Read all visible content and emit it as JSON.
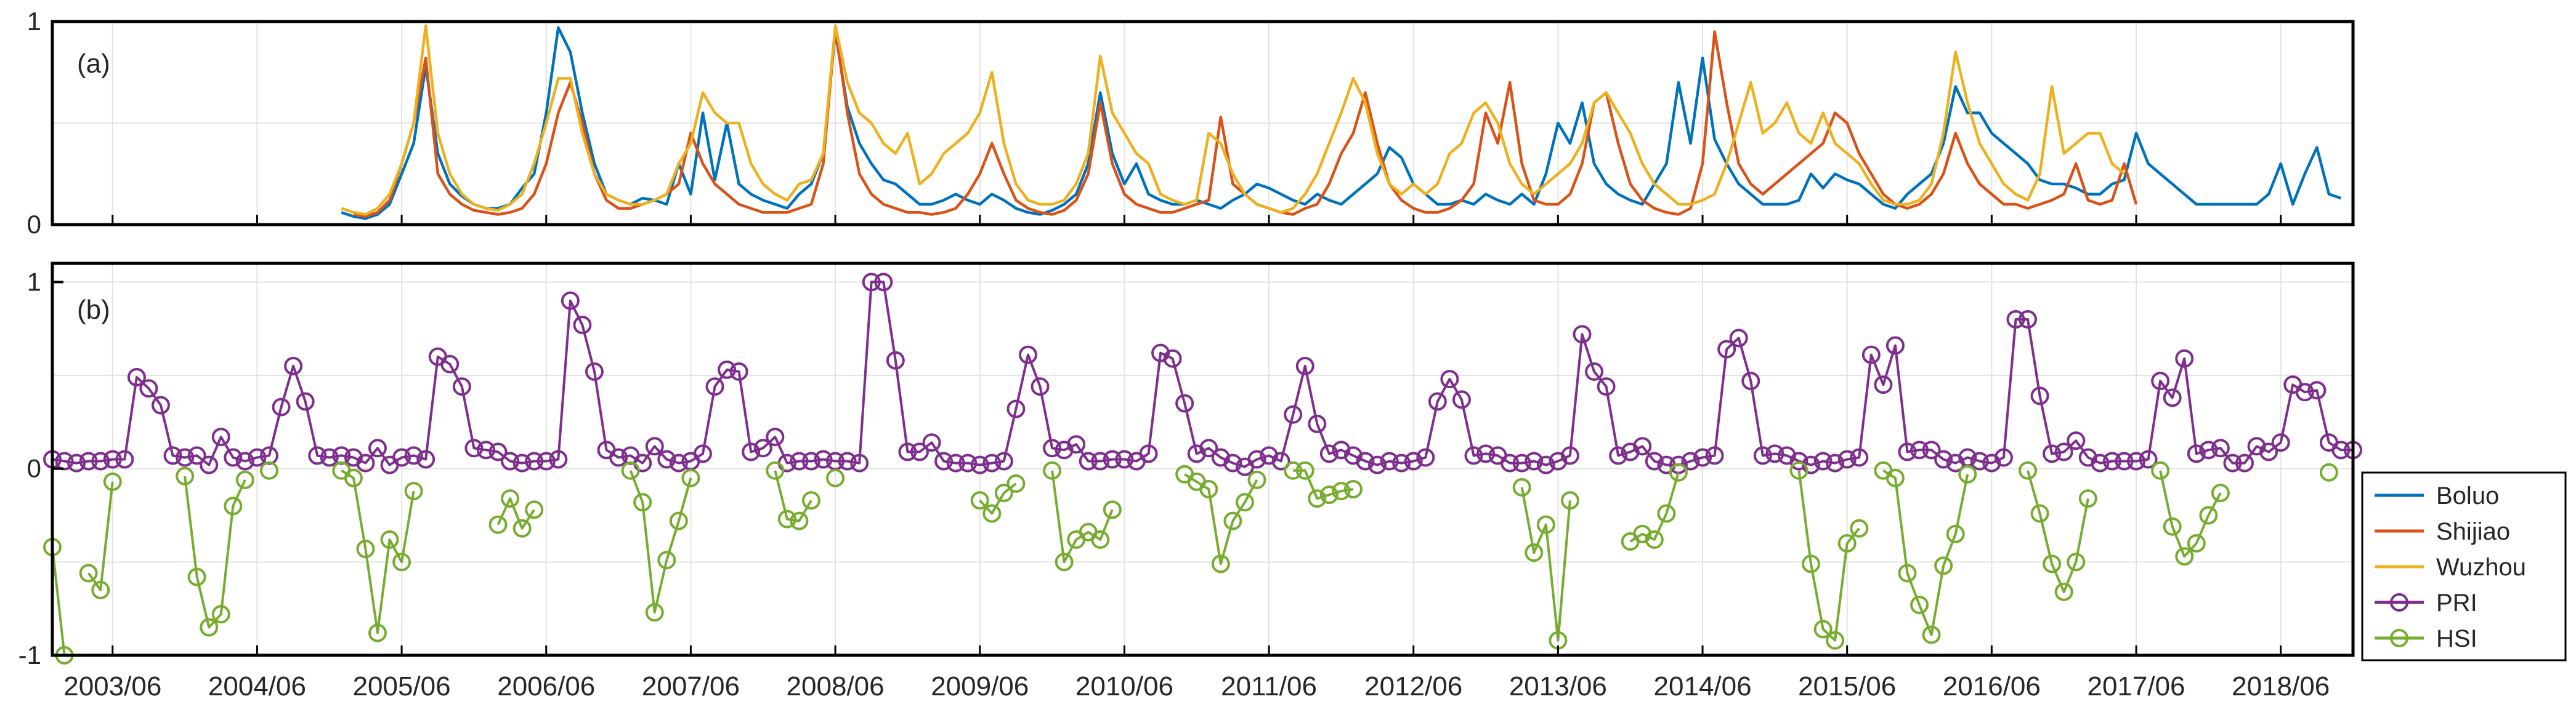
{
  "figure": {
    "legend": [
      {
        "label": "Boluo",
        "color": "#0072BD",
        "marker": "none"
      },
      {
        "label": "Shijiao",
        "color": "#D95319",
        "marker": "none"
      },
      {
        "label": "Wuzhou",
        "color": "#EDB120",
        "marker": "none"
      },
      {
        "label": "PRI",
        "color": "#7E2F8E",
        "marker": "circle"
      },
      {
        "label": "HSI",
        "color": "#77AC30",
        "marker": "circle"
      }
    ],
    "x_ticks": [
      "2003/06",
      "2004/06",
      "2005/06",
      "2006/06",
      "2007/06",
      "2008/06",
      "2009/06",
      "2010/06",
      "2011/06",
      "2012/06",
      "2013/06",
      "2014/06",
      "2015/06",
      "2016/06",
      "2017/06",
      "2018/06"
    ]
  },
  "chart_data": [
    {
      "type": "line",
      "panel_label": "(a)",
      "x_unit": "month index (0 = 2003/01)",
      "xlim": [
        0,
        191
      ],
      "ylim": [
        0,
        1
      ],
      "yticks": [
        0,
        1
      ],
      "grid": true,
      "series": [
        {
          "name": "Boluo",
          "color": "#0072BD",
          "x_start": 24,
          "values": [
            0.06,
            0.04,
            0.03,
            0.05,
            0.1,
            0.25,
            0.4,
            0.78,
            0.35,
            0.2,
            0.14,
            0.1,
            0.08,
            0.08,
            0.1,
            0.18,
            0.25,
            0.55,
            0.97,
            0.85,
            0.55,
            0.3,
            0.15,
            0.12,
            0.1,
            0.13,
            0.12,
            0.1,
            0.3,
            0.15,
            0.55,
            0.22,
            0.5,
            0.2,
            0.15,
            0.12,
            0.1,
            0.08,
            0.15,
            0.2,
            0.35,
            0.95,
            0.58,
            0.4,
            0.3,
            0.22,
            0.2,
            0.15,
            0.1,
            0.1,
            0.12,
            0.15,
            0.12,
            0.1,
            0.15,
            0.12,
            0.08,
            0.06,
            0.05,
            0.07,
            0.1,
            0.15,
            0.3,
            0.65,
            0.35,
            0.2,
            0.3,
            0.15,
            0.12,
            0.1,
            0.1,
            0.12,
            0.1,
            0.08,
            0.12,
            0.15,
            0.2,
            0.18,
            0.15,
            0.12,
            0.1,
            0.15,
            0.12,
            0.1,
            0.15,
            0.2,
            0.25,
            0.38,
            0.33,
            0.2,
            0.15,
            0.1,
            0.1,
            0.12,
            0.1,
            0.15,
            0.12,
            0.1,
            0.15,
            0.1,
            0.25,
            0.5,
            0.4,
            0.6,
            0.3,
            0.2,
            0.15,
            0.12,
            0.1,
            0.2,
            0.3,
            0.7,
            0.4,
            0.82,
            0.42,
            0.3,
            0.2,
            0.15,
            0.1,
            0.1,
            0.1,
            0.12,
            0.25,
            0.18,
            0.25,
            0.22,
            0.2,
            0.15,
            0.1,
            0.08,
            0.15,
            0.2,
            0.25,
            0.4,
            0.68,
            0.55,
            0.55,
            0.45,
            0.4,
            0.35,
            0.3,
            0.22,
            0.2,
            0.2,
            0.18,
            0.15,
            0.15,
            0.2,
            0.22,
            0.45,
            0.3,
            0.25,
            0.2,
            0.15,
            0.1,
            0.1,
            0.1,
            0.1,
            0.1,
            0.1,
            0.15,
            0.3,
            0.1,
            0.25,
            0.38,
            0.15,
            0.13
          ]
        },
        {
          "name": "Shijiao",
          "color": "#D95319",
          "x_start": 25,
          "values": [
            0.05,
            0.04,
            0.06,
            0.12,
            0.3,
            0.5,
            0.82,
            0.25,
            0.15,
            0.1,
            0.07,
            0.06,
            0.05,
            0.06,
            0.08,
            0.15,
            0.3,
            0.55,
            0.7,
            0.5,
            0.25,
            0.12,
            0.08,
            0.08,
            0.1,
            0.12,
            0.15,
            0.2,
            0.45,
            0.3,
            0.2,
            0.15,
            0.1,
            0.08,
            0.06,
            0.06,
            0.06,
            0.08,
            0.1,
            0.3,
            0.97,
            0.55,
            0.25,
            0.15,
            0.1,
            0.08,
            0.06,
            0.06,
            0.05,
            0.06,
            0.08,
            0.15,
            0.25,
            0.4,
            0.25,
            0.12,
            0.08,
            0.06,
            0.05,
            0.07,
            0.12,
            0.25,
            0.6,
            0.3,
            0.15,
            0.1,
            0.08,
            0.06,
            0.06,
            0.08,
            0.1,
            0.12,
            0.53,
            0.2,
            0.15,
            0.1,
            0.08,
            0.06,
            0.05,
            0.08,
            0.1,
            0.2,
            0.35,
            0.45,
            0.65,
            0.4,
            0.2,
            0.12,
            0.08,
            0.06,
            0.06,
            0.08,
            0.12,
            0.2,
            0.55,
            0.4,
            0.7,
            0.3,
            0.12,
            0.1,
            0.1,
            0.15,
            0.3,
            0.6,
            0.65,
            0.4,
            0.2,
            0.12,
            0.08,
            0.06,
            0.05,
            0.08,
            0.3,
            0.95,
            0.6,
            0.3,
            0.2,
            0.15,
            0.2,
            0.25,
            0.3,
            0.35,
            0.4,
            0.55,
            0.5,
            0.35,
            0.25,
            0.15,
            0.1,
            0.08,
            0.1,
            0.15,
            0.25,
            0.45,
            0.3,
            0.2,
            0.15,
            0.1,
            0.1,
            0.08,
            0.1,
            0.12,
            0.15,
            0.3,
            0.12,
            0.1,
            0.12,
            0.3,
            0.1
          ]
        },
        {
          "name": "Wuzhou",
          "color": "#EDB120",
          "x_start": 24,
          "values": [
            0.08,
            0.06,
            0.05,
            0.08,
            0.15,
            0.3,
            0.5,
            0.98,
            0.45,
            0.25,
            0.15,
            0.1,
            0.08,
            0.07,
            0.1,
            0.15,
            0.3,
            0.5,
            0.72,
            0.72,
            0.45,
            0.25,
            0.15,
            0.12,
            0.1,
            0.1,
            0.12,
            0.15,
            0.3,
            0.4,
            0.65,
            0.55,
            0.5,
            0.5,
            0.3,
            0.2,
            0.15,
            0.12,
            0.2,
            0.22,
            0.35,
            0.98,
            0.7,
            0.55,
            0.5,
            0.4,
            0.35,
            0.45,
            0.2,
            0.25,
            0.35,
            0.4,
            0.45,
            0.55,
            0.75,
            0.4,
            0.2,
            0.12,
            0.1,
            0.1,
            0.12,
            0.2,
            0.35,
            0.83,
            0.55,
            0.45,
            0.35,
            0.3,
            0.15,
            0.12,
            0.1,
            0.12,
            0.45,
            0.4,
            0.25,
            0.15,
            0.1,
            0.08,
            0.06,
            0.08,
            0.15,
            0.25,
            0.4,
            0.55,
            0.72,
            0.6,
            0.35,
            0.2,
            0.15,
            0.2,
            0.15,
            0.2,
            0.35,
            0.4,
            0.55,
            0.6,
            0.5,
            0.3,
            0.2,
            0.15,
            0.2,
            0.25,
            0.3,
            0.4,
            0.6,
            0.65,
            0.55,
            0.45,
            0.3,
            0.2,
            0.15,
            0.1,
            0.1,
            0.12,
            0.15,
            0.3,
            0.5,
            0.7,
            0.45,
            0.5,
            0.6,
            0.45,
            0.4,
            0.55,
            0.4,
            0.35,
            0.3,
            0.2,
            0.12,
            0.1,
            0.1,
            0.12,
            0.2,
            0.45,
            0.85,
            0.6,
            0.4,
            0.3,
            0.2,
            0.15,
            0.12,
            0.25,
            0.68,
            0.35,
            0.4,
            0.45,
            0.45,
            0.3,
            0.25
          ]
        }
      ]
    },
    {
      "type": "line",
      "panel_label": "(b)",
      "x_unit": "month index (0 = 2003/01)",
      "xlim": [
        0,
        191
      ],
      "ylim": [
        -1,
        1.1
      ],
      "yticks": [
        -1,
        0,
        1
      ],
      "grid": true,
      "series": [
        {
          "name": "PRI",
          "color": "#7E2F8E",
          "marker": "circle",
          "x_start": 0,
          "values": [
            0.05,
            0.04,
            0.03,
            0.04,
            0.04,
            0.05,
            0.05,
            0.49,
            0.43,
            0.34,
            0.07,
            0.06,
            0.07,
            0.02,
            0.17,
            0.06,
            0.04,
            0.06,
            0.07,
            0.33,
            0.55,
            0.36,
            0.07,
            0.06,
            0.07,
            0.06,
            0.03,
            0.11,
            0.02,
            0.06,
            0.07,
            0.05,
            0.6,
            0.56,
            0.44,
            0.11,
            0.1,
            0.09,
            0.04,
            0.03,
            0.04,
            0.04,
            0.05,
            0.9,
            0.77,
            0.52,
            0.1,
            0.06,
            0.07,
            0.03,
            0.12,
            0.05,
            0.03,
            0.04,
            0.08,
            0.44,
            0.53,
            0.52,
            0.09,
            0.11,
            0.17,
            0.03,
            0.04,
            0.04,
            0.05,
            0.04,
            0.04,
            0.03,
            1.0,
            1.0,
            0.58,
            0.09,
            0.09,
            0.14,
            0.04,
            0.03,
            0.03,
            0.02,
            0.03,
            0.04,
            0.32,
            0.61,
            0.44,
            0.11,
            0.1,
            0.13,
            0.04,
            0.04,
            0.05,
            0.05,
            0.04,
            0.08,
            0.62,
            0.59,
            0.35,
            0.08,
            0.11,
            0.06,
            0.03,
            0.01,
            0.05,
            0.07,
            0.04,
            0.29,
            0.55,
            0.24,
            0.08,
            0.1,
            0.07,
            0.04,
            0.02,
            0.04,
            0.03,
            0.04,
            0.06,
            0.36,
            0.48,
            0.37,
            0.07,
            0.08,
            0.07,
            0.03,
            0.03,
            0.04,
            0.02,
            0.04,
            0.07,
            0.72,
            0.52,
            0.44,
            0.07,
            0.09,
            0.12,
            0.04,
            0.02,
            0.02,
            0.04,
            0.06,
            0.07,
            0.64,
            0.7,
            0.47,
            0.07,
            0.08,
            0.07,
            0.04,
            0.02,
            0.04,
            0.03,
            0.05,
            0.06,
            0.61,
            0.45,
            0.66,
            0.09,
            0.1,
            0.1,
            0.05,
            0.03,
            0.06,
            0.04,
            0.03,
            0.06,
            0.8,
            0.8,
            0.39,
            0.08,
            0.09,
            0.15,
            0.06,
            0.03,
            0.04,
            0.04,
            0.04,
            0.05,
            0.47,
            0.38,
            0.59,
            0.08,
            0.1,
            0.11,
            0.03,
            0.03,
            0.12,
            0.09,
            0.14,
            0.45,
            0.41,
            0.42,
            0.14,
            0.1,
            0.1
          ]
        },
        {
          "name": "HSI",
          "color": "#77AC30",
          "marker": "circle",
          "x_start": 0,
          "values": [
            -0.42,
            -1.0,
            null,
            -0.56,
            -0.65,
            -0.07,
            null,
            null,
            null,
            null,
            null,
            -0.04,
            -0.58,
            -0.85,
            -0.78,
            -0.2,
            -0.06,
            null,
            -0.01,
            null,
            null,
            null,
            null,
            null,
            -0.01,
            -0.05,
            -0.43,
            -0.88,
            -0.38,
            -0.5,
            -0.12,
            null,
            null,
            null,
            null,
            null,
            null,
            -0.3,
            -0.16,
            -0.32,
            -0.22,
            null,
            null,
            null,
            null,
            null,
            null,
            null,
            -0.01,
            -0.18,
            -0.77,
            -0.49,
            -0.28,
            -0.05,
            null,
            null,
            null,
            null,
            null,
            null,
            -0.01,
            -0.27,
            -0.28,
            -0.17,
            null,
            -0.05,
            null,
            null,
            null,
            null,
            null,
            null,
            null,
            null,
            null,
            null,
            null,
            -0.17,
            -0.24,
            -0.13,
            -0.08,
            null,
            null,
            -0.01,
            -0.5,
            -0.38,
            -0.34,
            -0.38,
            -0.22,
            null,
            null,
            null,
            null,
            null,
            -0.03,
            -0.07,
            -0.11,
            -0.51,
            -0.28,
            -0.18,
            -0.06,
            null,
            null,
            -0.01,
            -0.01,
            -0.16,
            -0.14,
            -0.12,
            -0.11,
            null,
            null,
            null,
            null,
            null,
            null,
            null,
            null,
            null,
            null,
            null,
            null,
            null,
            -0.1,
            -0.45,
            -0.3,
            -0.92,
            -0.17,
            null,
            null,
            null,
            null,
            -0.39,
            -0.35,
            -0.38,
            -0.24,
            -0.02,
            null,
            null,
            null,
            null,
            null,
            null,
            null,
            null,
            null,
            -0.01,
            -0.51,
            -0.86,
            -0.92,
            -0.4,
            -0.32,
            null,
            -0.01,
            -0.05,
            -0.56,
            -0.73,
            -0.89,
            -0.52,
            -0.35,
            -0.03,
            null,
            null,
            null,
            null,
            -0.01,
            -0.24,
            -0.51,
            -0.66,
            -0.5,
            -0.16,
            null,
            null,
            null,
            null,
            null,
            -0.01,
            -0.31,
            -0.47,
            -0.4,
            -0.25,
            -0.13,
            null,
            null,
            null,
            null,
            null,
            null,
            null,
            null,
            -0.02
          ]
        }
      ]
    }
  ]
}
